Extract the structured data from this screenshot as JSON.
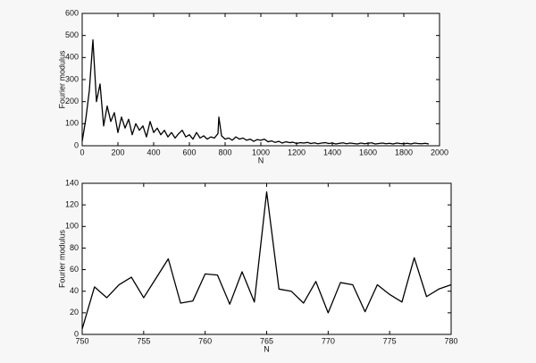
{
  "chart_data": [
    {
      "type": "line",
      "x_label": "N",
      "y_label": "Fourier modulus",
      "color": "#000000",
      "x": [
        0,
        20,
        40,
        60,
        80,
        100,
        120,
        140,
        160,
        180,
        200,
        220,
        240,
        260,
        280,
        300,
        320,
        340,
        360,
        380,
        400,
        420,
        440,
        460,
        480,
        500,
        520,
        540,
        560,
        580,
        600,
        620,
        640,
        660,
        680,
        700,
        720,
        740,
        760,
        765,
        780,
        800,
        820,
        840,
        860,
        880,
        900,
        920,
        940,
        960,
        980,
        1000,
        1020,
        1040,
        1060,
        1080,
        1100,
        1120,
        1140,
        1160,
        1180,
        1200,
        1220,
        1240,
        1260,
        1280,
        1300,
        1320,
        1340,
        1360,
        1380,
        1400,
        1420,
        1440,
        1460,
        1480,
        1500,
        1520,
        1540,
        1560,
        1580,
        1600,
        1620,
        1640,
        1660,
        1680,
        1700,
        1720,
        1740,
        1760,
        1780,
        1800,
        1820,
        1840,
        1860,
        1880,
        1900,
        1920,
        1940
      ],
      "values": [
        20,
        120,
        250,
        480,
        200,
        280,
        90,
        180,
        110,
        150,
        60,
        130,
        80,
        120,
        50,
        100,
        70,
        90,
        40,
        110,
        60,
        80,
        50,
        70,
        40,
        60,
        35,
        55,
        70,
        40,
        50,
        30,
        60,
        35,
        45,
        30,
        40,
        35,
        55,
        130,
        45,
        30,
        35,
        25,
        40,
        30,
        35,
        25,
        30,
        20,
        28,
        25,
        30,
        18,
        22,
        15,
        20,
        12,
        18,
        14,
        16,
        10,
        14,
        12,
        15,
        10,
        13,
        9,
        12,
        14,
        10,
        12,
        8,
        11,
        13,
        9,
        12,
        10,
        8,
        12,
        9,
        11,
        13,
        8,
        10,
        12,
        9,
        11,
        8,
        12,
        10,
        9,
        11,
        8,
        12,
        10,
        9,
        11,
        8
      ],
      "xlim": [
        0,
        2000
      ],
      "ylim": [
        0,
        600
      ],
      "xticks": [
        0,
        200,
        400,
        600,
        800,
        1000,
        1200,
        1400,
        1600,
        1800,
        2000
      ],
      "yticks": [
        0,
        100,
        200,
        300,
        400,
        500,
        600
      ]
    },
    {
      "type": "line",
      "x_label": "N",
      "y_label": "Fourier modulus",
      "color": "#000000",
      "x": [
        750,
        751,
        752,
        753,
        754,
        755,
        756,
        757,
        758,
        759,
        760,
        761,
        762,
        763,
        764,
        765,
        766,
        767,
        768,
        769,
        770,
        771,
        772,
        773,
        774,
        775,
        776,
        777,
        778,
        779,
        780
      ],
      "values": [
        5,
        44,
        34,
        46,
        53,
        34,
        52,
        70,
        29,
        31,
        56,
        55,
        28,
        58,
        30,
        132,
        42,
        40,
        29,
        49,
        20,
        48,
        46,
        21,
        46,
        37,
        30,
        71,
        35,
        42,
        46
      ],
      "xlim": [
        750,
        780
      ],
      "ylim": [
        0,
        140
      ],
      "xticks": [
        750,
        755,
        760,
        765,
        770,
        775,
        780
      ],
      "yticks": [
        0,
        20,
        40,
        60,
        80,
        100,
        120,
        140
      ]
    }
  ]
}
